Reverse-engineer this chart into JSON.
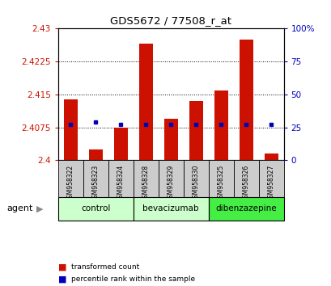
{
  "title": "GDS5672 / 77508_r_at",
  "samples": [
    "GSM958322",
    "GSM958323",
    "GSM958324",
    "GSM958328",
    "GSM958329",
    "GSM958330",
    "GSM958325",
    "GSM958326",
    "GSM958327"
  ],
  "bar_values": [
    2.4138,
    2.4025,
    2.4075,
    2.4265,
    2.4095,
    2.4135,
    2.4158,
    2.4275,
    2.4015
  ],
  "percentile_values": [
    27,
    29,
    27,
    27,
    27,
    27,
    27,
    27,
    27
  ],
  "bar_bottom": 2.4,
  "ylim_left": [
    2.4,
    2.43
  ],
  "ylim_right": [
    0,
    100
  ],
  "yticks_left": [
    2.4,
    2.4075,
    2.415,
    2.4225,
    2.43
  ],
  "yticks_right": [
    0,
    25,
    50,
    75,
    100
  ],
  "ytick_labels_left": [
    "2.4",
    "2.4075",
    "2.415",
    "2.4225",
    "2.43"
  ],
  "ytick_labels_right": [
    "0",
    "25",
    "50",
    "75",
    "100%"
  ],
  "bar_color": "#cc1100",
  "percentile_color": "#0000bb",
  "groups": [
    {
      "label": "control",
      "indices": [
        0,
        1,
        2
      ],
      "color": "#ccffcc"
    },
    {
      "label": "bevacizumab",
      "indices": [
        3,
        4,
        5
      ],
      "color": "#ccffcc"
    },
    {
      "label": "dibenzazepine",
      "indices": [
        6,
        7,
        8
      ],
      "color": "#44ee44"
    }
  ],
  "agent_label": "agent",
  "legend_items": [
    {
      "label": "transformed count",
      "color": "#cc1100"
    },
    {
      "label": "percentile rank within the sample",
      "color": "#0000bb"
    }
  ],
  "background_color": "#ffffff",
  "sample_box_color": "#cccccc",
  "bar_width": 0.55
}
